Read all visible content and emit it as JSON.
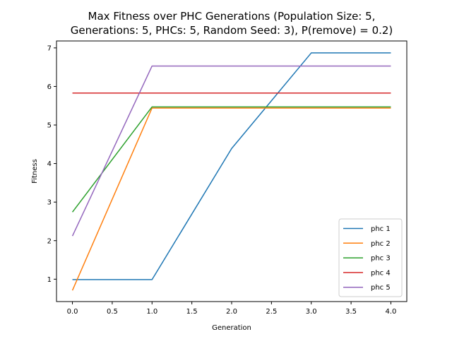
{
  "chart_data": {
    "type": "line",
    "title_line1": "Max Fitness over PHC Generations (Population Size: 5,",
    "title_line2": "Generations: 5, PHCs: 5, Random Seed: 3), P(remove) = 0.2)",
    "xlabel": "Generation",
    "ylabel": "Fitness",
    "x": [
      0,
      1,
      2,
      3,
      4
    ],
    "xlim": [
      -0.2,
      4.2
    ],
    "ylim": [
      0.42,
      7.18
    ],
    "xticks": [
      0.0,
      0.5,
      1.0,
      1.5,
      2.0,
      2.5,
      3.0,
      3.5,
      4.0
    ],
    "xtick_labels": [
      "0.0",
      "0.5",
      "1.0",
      "1.5",
      "2.0",
      "2.5",
      "3.0",
      "3.5",
      "4.0"
    ],
    "yticks": [
      1,
      2,
      3,
      4,
      5,
      6,
      7
    ],
    "ytick_labels": [
      "1",
      "2",
      "3",
      "4",
      "5",
      "6",
      "7"
    ],
    "grid": false,
    "legend_position": "lower-right",
    "series": [
      {
        "name": "phc 1",
        "color": "#1f77b4",
        "values": [
          0.99,
          0.99,
          4.39,
          6.87,
          6.87
        ]
      },
      {
        "name": "phc 2",
        "color": "#ff7f0e",
        "values": [
          0.71,
          5.44,
          5.44,
          5.44,
          5.44
        ]
      },
      {
        "name": "phc 3",
        "color": "#2ca02c",
        "values": [
          2.74,
          5.47,
          5.47,
          5.47,
          5.47
        ]
      },
      {
        "name": "phc 4",
        "color": "#d62728",
        "values": [
          5.83,
          5.83,
          5.83,
          5.83,
          5.83
        ]
      },
      {
        "name": "phc 5",
        "color": "#9467bd",
        "values": [
          2.12,
          6.53,
          6.53,
          6.53,
          6.53
        ]
      }
    ]
  }
}
